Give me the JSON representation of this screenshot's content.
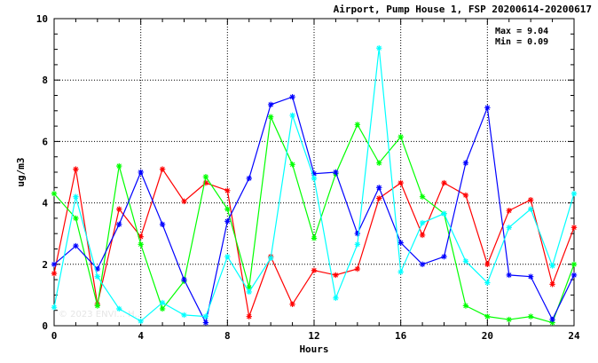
{
  "chart_data": {
    "type": "line",
    "title": "Airport, Pump House 1, FSP 20200614-20200617",
    "xlabel": "Hours",
    "ylabel": "ug/m3",
    "xlim": [
      0,
      24
    ],
    "ylim": [
      0,
      10
    ],
    "xticks": [
      0,
      4,
      8,
      12,
      16,
      20,
      24
    ],
    "yticks": [
      0,
      2,
      4,
      6,
      8,
      10
    ],
    "grid": true,
    "marker": "asterisk",
    "stats": {
      "max_label": "Max = 9.04",
      "min_label": "Min = 0.09"
    },
    "watermark": "© 2023 ENVI... H...",
    "x": [
      0,
      1,
      2,
      3,
      4,
      5,
      6,
      7,
      8,
      9,
      10,
      11,
      12,
      13,
      14,
      15,
      16,
      17,
      18,
      19,
      20,
      21,
      22,
      23,
      24
    ],
    "series": [
      {
        "color": "#ff0000",
        "values": [
          1.7,
          5.1,
          0.7,
          3.8,
          2.9,
          5.1,
          4.05,
          4.65,
          4.4,
          0.3,
          2.25,
          0.7,
          1.8,
          1.65,
          1.85,
          4.15,
          4.65,
          2.95,
          4.65,
          4.25,
          2.0,
          3.75,
          4.1,
          1.35,
          3.2
        ]
      },
      {
        "color": "#00ff00",
        "values": [
          4.3,
          3.5,
          0.65,
          5.2,
          2.65,
          0.55,
          1.45,
          4.85,
          3.8,
          1.25,
          6.8,
          5.25,
          2.85,
          4.95,
          6.55,
          5.3,
          6.15,
          4.2,
          3.65,
          0.65,
          0.3,
          0.2,
          0.3,
          0.1,
          2.0
        ]
      },
      {
        "color": "#0000ff",
        "values": [
          2.0,
          2.6,
          1.85,
          3.3,
          5.0,
          3.3,
          1.5,
          0.1,
          3.4,
          4.8,
          7.2,
          7.45,
          4.95,
          5.0,
          3.0,
          4.5,
          2.7,
          2.0,
          2.25,
          5.3,
          7.1,
          1.65,
          1.6,
          0.2,
          1.65
        ]
      },
      {
        "color": "#00ffff",
        "values": [
          0.6,
          4.2,
          1.6,
          0.55,
          0.15,
          0.75,
          0.35,
          0.3,
          2.25,
          1.1,
          2.2,
          6.85,
          4.8,
          0.9,
          2.65,
          9.04,
          1.75,
          3.35,
          3.65,
          2.1,
          1.4,
          3.2,
          3.8,
          1.95,
          4.3
        ]
      }
    ]
  }
}
